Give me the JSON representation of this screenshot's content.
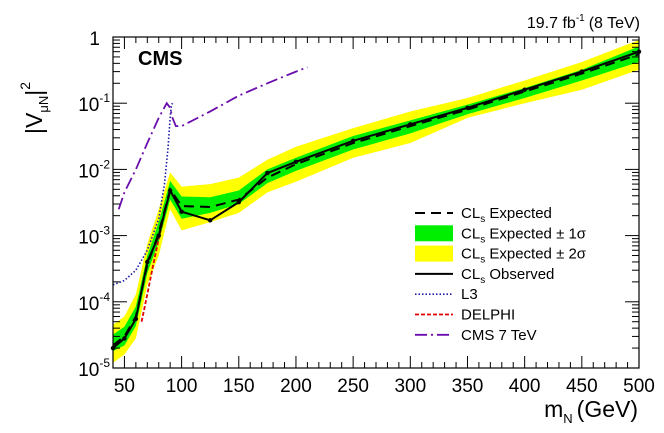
{
  "chart_data": {
    "type": "line",
    "experiment": "CMS",
    "lumi_value": "19.7 fb",
    "lumi_exp": "-1",
    "lumi_energy": "(8 TeV)",
    "xlabel": {
      "main": "m",
      "sub": "N",
      "unit": "(GeV)"
    },
    "ylabel": {
      "main": "|V",
      "sub": "μN",
      "close": "|",
      "sup": "2"
    },
    "xlim": [
      40,
      500
    ],
    "ylim": [
      1e-05,
      1
    ],
    "yscale": "log",
    "x_ticks": [
      50,
      100,
      150,
      200,
      250,
      300,
      350,
      400,
      450,
      500
    ],
    "y_ticks": [
      {
        "value": 1,
        "base": "1",
        "exp": ""
      },
      {
        "value": 0.1,
        "base": "10",
        "exp": "-1"
      },
      {
        "value": 0.01,
        "base": "10",
        "exp": "-2"
      },
      {
        "value": 0.001,
        "base": "10",
        "exp": "-3"
      },
      {
        "value": 0.0001,
        "base": "10",
        "exp": "-4"
      },
      {
        "value": 1e-05,
        "base": "10",
        "exp": "-5"
      }
    ],
    "band_2sigma": {
      "x": [
        40,
        50,
        60,
        70,
        80,
        90,
        100,
        125,
        150,
        175,
        200,
        250,
        300,
        350,
        400,
        450,
        500
      ],
      "lower": [
        1.2e-05,
        1.6e-05,
        2.8e-05,
        0.00018,
        0.0005,
        0.0025,
        0.0012,
        0.0016,
        0.0022,
        0.0045,
        0.0065,
        0.015,
        0.025,
        0.06,
        0.1,
        0.16,
        0.32
      ],
      "upper": [
        4.5e-05,
        6e-05,
        0.00013,
        0.00075,
        0.0025,
        0.009,
        0.0055,
        0.006,
        0.0075,
        0.014,
        0.022,
        0.042,
        0.075,
        0.12,
        0.22,
        0.42,
        0.9
      ]
    },
    "band_1sigma": {
      "x": [
        40,
        50,
        60,
        70,
        80,
        90,
        100,
        125,
        150,
        175,
        200,
        250,
        300,
        350,
        400,
        450,
        500
      ],
      "lower": [
        1.8e-05,
        2.2e-05,
        4.3e-05,
        0.00027,
        0.0008,
        0.0035,
        0.0018,
        0.0022,
        0.003,
        0.0062,
        0.0095,
        0.02,
        0.035,
        0.068,
        0.12,
        0.22,
        0.42
      ],
      "upper": [
        3.2e-05,
        4.2e-05,
        8.5e-05,
        0.0005,
        0.0016,
        0.0067,
        0.0039,
        0.0038,
        0.0048,
        0.01,
        0.015,
        0.032,
        0.055,
        0.095,
        0.17,
        0.32,
        0.72
      ]
    },
    "series": [
      {
        "name": "CLs Expected",
        "style": "dashed",
        "color": "#000000",
        "x": [
          40,
          50,
          60,
          70,
          80,
          90,
          100,
          125,
          150,
          175,
          200,
          250,
          300,
          350,
          400,
          450,
          500
        ],
        "y": [
          2.2e-05,
          3e-05,
          6e-05,
          0.00036,
          0.0011,
          0.005,
          0.0028,
          0.0027,
          0.0035,
          0.0075,
          0.012,
          0.025,
          0.045,
          0.08,
          0.15,
          0.28,
          0.55
        ]
      },
      {
        "name": "CLs Observed",
        "style": "solid",
        "color": "#000000",
        "x": [
          40,
          50,
          60,
          70,
          80,
          90,
          100,
          125,
          150,
          175,
          200,
          250,
          300,
          350,
          400,
          450,
          500
        ],
        "y": [
          2e-05,
          2.8e-05,
          5.5e-05,
          0.0004,
          0.001,
          0.0048,
          0.0023,
          0.0017,
          0.0032,
          0.0088,
          0.013,
          0.027,
          0.048,
          0.085,
          0.16,
          0.3,
          0.6
        ]
      },
      {
        "name": "L3",
        "style": "dotted",
        "color": "#1a1aa6",
        "x": [
          40,
          50,
          60,
          70,
          80,
          85,
          88,
          90,
          91,
          92
        ],
        "y": [
          0.00018,
          0.00021,
          0.0003,
          0.0006,
          0.0018,
          0.006,
          0.02,
          0.06,
          0.09,
          0.1
        ]
      },
      {
        "name": "DELPHI",
        "style": "dashed-fine",
        "color": "#e00000",
        "x": [
          65,
          70,
          75,
          80,
          85,
          88,
          90
        ],
        "y": [
          5e-05,
          0.00013,
          0.00035,
          0.0009,
          0.0022,
          0.0035,
          0.0045
        ]
      },
      {
        "name": "CMS 7 TeV",
        "style": "dashdot",
        "color": "#6a0dad",
        "x": [
          45,
          50,
          60,
          70,
          80,
          87,
          90,
          92,
          95,
          100,
          125,
          150,
          175,
          200,
          210
        ],
        "y": [
          0.0025,
          0.0045,
          0.01,
          0.025,
          0.06,
          0.1,
          0.085,
          0.06,
          0.045,
          0.045,
          0.075,
          0.13,
          0.2,
          0.3,
          0.35
        ]
      }
    ],
    "legend": {
      "position": "bottom-right",
      "entries": [
        {
          "key": "exp",
          "pre": "CL",
          "sub": "s",
          "post": " Expected",
          "swatch": "dashed"
        },
        {
          "key": "exp1",
          "pre": "CL",
          "sub": "s",
          "post": " Expected ± 1σ",
          "swatch": "box-green"
        },
        {
          "key": "exp2",
          "pre": "CL",
          "sub": "s",
          "post": " Expected ± 2σ",
          "swatch": "box-yellow"
        },
        {
          "key": "obs",
          "pre": "CL",
          "sub": "s",
          "post": " Observed",
          "swatch": "solid"
        },
        {
          "key": "l3",
          "pre": "L3",
          "sub": "",
          "post": "",
          "swatch": "dotted"
        },
        {
          "key": "delphi",
          "pre": "DELPHI",
          "sub": "",
          "post": "",
          "swatch": "dashed-red"
        },
        {
          "key": "cms7",
          "pre": "CMS 7 TeV",
          "sub": "",
          "post": "",
          "swatch": "dashdot"
        }
      ]
    },
    "colors": {
      "band_1sigma": "#00ee00",
      "band_2sigma": "#ffff00",
      "l3": "#1a1aa6",
      "delphi": "#e00000",
      "cms7": "#6a0dad"
    }
  }
}
